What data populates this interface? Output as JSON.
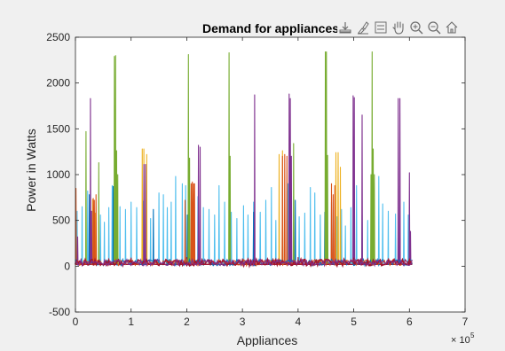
{
  "window": {
    "background": "#f0f0f0"
  },
  "toolbar": {
    "icons": [
      "export-icon",
      "brush-icon",
      "legend-icon",
      "pan-icon",
      "zoom-in-icon",
      "zoom-out-icon",
      "home-icon"
    ]
  },
  "chart_data": {
    "type": "line",
    "title": "Demand for appliances",
    "xlabel": "Appliances",
    "ylabel": "Power in Watts",
    "xlim": [
      0,
      700000
    ],
    "ylim": [
      -500,
      2500
    ],
    "x_ticks": [
      0,
      100000,
      200000,
      300000,
      400000,
      500000,
      600000,
      700000
    ],
    "x_tick_labels": [
      "0",
      "1",
      "2",
      "3",
      "4",
      "5",
      "6",
      "7"
    ],
    "x_exponent": "× 10",
    "x_exponent_power": "5",
    "y_ticks": [
      -500,
      0,
      500,
      1000,
      1500,
      2000,
      2500
    ],
    "y_tick_labels": [
      "-500",
      "0",
      "500",
      "1000",
      "1500",
      "2000",
      "2500"
    ],
    "grid": false,
    "baseline": 20,
    "series": [
      {
        "color": "#4DBEEE",
        "spikes": [
          [
            3000,
            600
          ],
          [
            12000,
            650
          ],
          [
            22000,
            820
          ],
          [
            34000,
            600
          ],
          [
            45000,
            560
          ],
          [
            52000,
            480
          ],
          [
            60000,
            640
          ],
          [
            66000,
            880
          ],
          [
            80000,
            650
          ],
          [
            90000,
            620
          ],
          [
            100000,
            700
          ],
          [
            110000,
            640
          ],
          [
            122000,
            710
          ],
          [
            135000,
            520
          ],
          [
            150000,
            800
          ],
          [
            158000,
            780
          ],
          [
            165000,
            640
          ],
          [
            172000,
            700
          ],
          [
            180000,
            980
          ],
          [
            192000,
            900
          ],
          [
            198000,
            880
          ],
          [
            210000,
            700
          ],
          [
            220000,
            760
          ],
          [
            230000,
            640
          ],
          [
            240000,
            620
          ],
          [
            250000,
            560
          ],
          [
            258000,
            880
          ],
          [
            268000,
            700
          ],
          [
            280000,
            590
          ],
          [
            290000,
            520
          ],
          [
            302000,
            660
          ],
          [
            310000,
            560
          ],
          [
            320000,
            700
          ],
          [
            332000,
            590
          ],
          [
            342000,
            720
          ],
          [
            352000,
            860
          ],
          [
            360000,
            500
          ],
          [
            372000,
            560
          ],
          [
            382000,
            900
          ],
          [
            392000,
            760
          ],
          [
            402000,
            540
          ],
          [
            412000,
            580
          ],
          [
            422000,
            860
          ],
          [
            430000,
            800
          ],
          [
            440000,
            560
          ],
          [
            452000,
            520
          ],
          [
            460000,
            700
          ],
          [
            470000,
            540
          ],
          [
            478000,
            620
          ],
          [
            485000,
            440
          ],
          [
            495000,
            640
          ],
          [
            505000,
            880
          ],
          [
            515000,
            560
          ],
          [
            525000,
            500
          ],
          [
            535000,
            760
          ],
          [
            545000,
            980
          ],
          [
            552000,
            680
          ],
          [
            562000,
            600
          ],
          [
            575000,
            570
          ],
          [
            590000,
            700
          ],
          [
            598000,
            560
          ]
        ]
      },
      {
        "color": "#0072BD",
        "spikes": [
          [
            25000,
            780
          ],
          [
            68000,
            870
          ],
          [
            140000,
            620
          ],
          [
            201000,
            560
          ],
          [
            320000,
            590
          ],
          [
            395000,
            720
          ],
          [
            448000,
            590
          ],
          [
            500000,
            640
          ],
          [
            580000,
            870
          ]
        ]
      },
      {
        "color": "#77AC30",
        "spikes": [
          [
            19000,
            1470
          ],
          [
            42000,
            1130
          ],
          [
            70000,
            2290
          ],
          [
            72000,
            2300
          ],
          [
            74000,
            1260
          ],
          [
            76000,
            1000
          ],
          [
            203000,
            2310
          ],
          [
            205000,
            1180
          ],
          [
            276000,
            2330
          ],
          [
            278000,
            1200
          ],
          [
            392000,
            1340
          ],
          [
            449000,
            2340
          ],
          [
            451000,
            2340
          ],
          [
            453000,
            1210
          ],
          [
            531000,
            1000
          ],
          [
            533000,
            2340
          ],
          [
            535000,
            1280
          ],
          [
            537000,
            1000
          ]
        ]
      },
      {
        "color": "#EDB120",
        "spikes": [
          [
            31000,
            730
          ],
          [
            35000,
            580
          ],
          [
            120000,
            1280
          ],
          [
            123000,
            1280
          ],
          [
            128000,
            1220
          ],
          [
            366000,
            1220
          ],
          [
            372000,
            1260
          ],
          [
            384000,
            1000
          ],
          [
            388000,
            830
          ],
          [
            468000,
            1240
          ],
          [
            472000,
            1240
          ],
          [
            476000,
            1080
          ]
        ]
      },
      {
        "color": "#D95319",
        "spikes": [
          [
            1000,
            850
          ],
          [
            32000,
            740
          ],
          [
            34000,
            720
          ],
          [
            37000,
            780
          ],
          [
            197000,
            720
          ],
          [
            208000,
            900
          ],
          [
            210000,
            920
          ],
          [
            212000,
            900
          ],
          [
            214000,
            900
          ],
          [
            372000,
            1200
          ],
          [
            376000,
            1220
          ],
          [
            380000,
            1200
          ],
          [
            460000,
            900
          ],
          [
            463000,
            780
          ],
          [
            466000,
            880
          ]
        ]
      },
      {
        "color": "#7E2F8E",
        "spikes": [
          [
            4000,
            320
          ],
          [
            27000,
            1830
          ],
          [
            29000,
            600
          ],
          [
            123000,
            1110
          ],
          [
            126000,
            1110
          ],
          [
            221000,
            1320
          ],
          [
            224000,
            1300
          ],
          [
            322000,
            1870
          ],
          [
            384000,
            1880
          ],
          [
            386000,
            1830
          ],
          [
            388000,
            1200
          ],
          [
            499000,
            1860
          ],
          [
            501000,
            1840
          ],
          [
            515000,
            1650
          ],
          [
            580000,
            1830
          ],
          [
            583000,
            1830
          ],
          [
            600000,
            1020
          ],
          [
            602000,
            380
          ]
        ]
      },
      {
        "color": "#A2142F",
        "spikes": [
          [
            10000,
            80
          ],
          [
            100000,
            90
          ],
          [
            200000,
            95
          ],
          [
            300000,
            80
          ],
          [
            400000,
            95
          ],
          [
            500000,
            90
          ],
          [
            600000,
            80
          ]
        ]
      }
    ]
  }
}
